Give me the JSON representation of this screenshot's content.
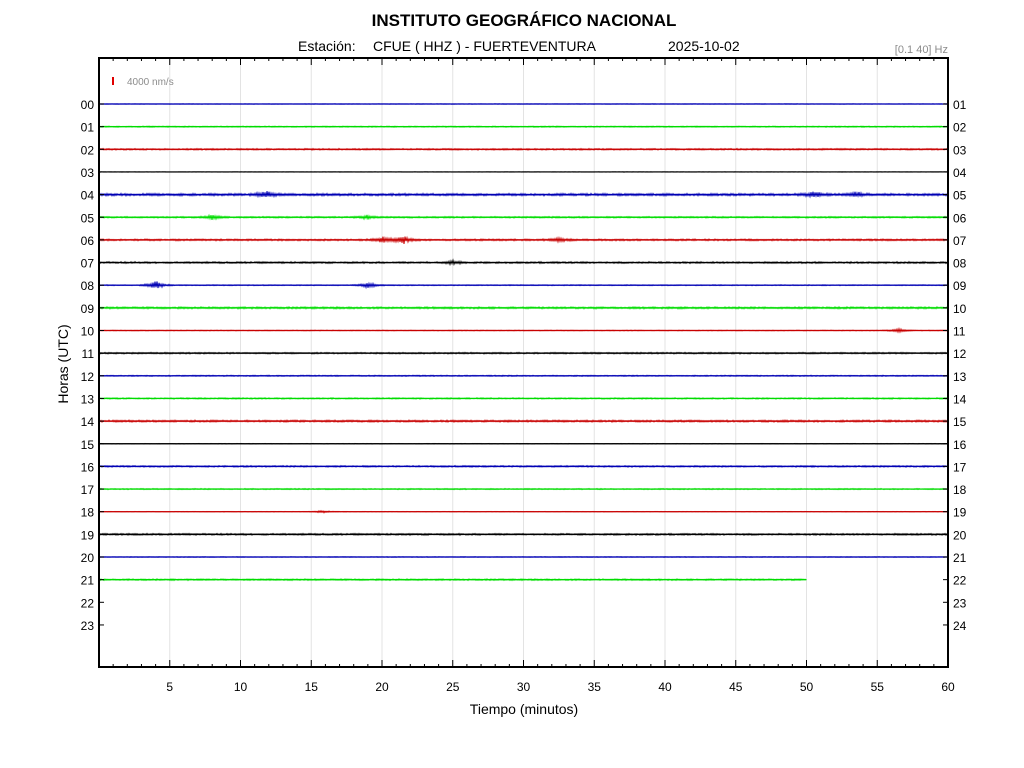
{
  "header": {
    "title": "INSTITUTO GEOGRÁFICO NACIONAL",
    "station_label": "Estación:",
    "station": "CFUE ( HHZ ) - FUERTEVENTURA",
    "date": "2025-10-02",
    "filter": "[0.1 40] Hz"
  },
  "scale": {
    "label": "4000 nm/s",
    "color": "#e00000"
  },
  "chart_data": {
    "type": "line",
    "title": "INSTITUTO GEOGRÁFICO NACIONAL",
    "xlabel": "Tiempo (minutos)",
    "ylabel": "Horas (UTC)",
    "xlim": [
      0,
      60
    ],
    "x_ticks": [
      5,
      10,
      15,
      20,
      25,
      30,
      35,
      40,
      45,
      50,
      55,
      60
    ],
    "left_hour_labels": [
      "00",
      "01",
      "02",
      "03",
      "04",
      "05",
      "06",
      "07",
      "08",
      "09",
      "10",
      "11",
      "12",
      "13",
      "14",
      "15",
      "16",
      "17",
      "18",
      "19",
      "20",
      "21",
      "22",
      "23"
    ],
    "right_hour_labels": [
      "01",
      "02",
      "03",
      "04",
      "05",
      "06",
      "07",
      "08",
      "09",
      "10",
      "11",
      "12",
      "13",
      "14",
      "15",
      "16",
      "17",
      "18",
      "19",
      "20",
      "21",
      "22",
      "23",
      "24"
    ],
    "grid": true,
    "trace_colors": [
      "#0000b4",
      "#00dc00",
      "#c80000",
      "#000000"
    ],
    "traces": [
      {
        "hour": "00",
        "end_minute": 60,
        "noise": 0.3,
        "bursts": []
      },
      {
        "hour": "01",
        "end_minute": 60,
        "noise": 0.6,
        "bursts": []
      },
      {
        "hour": "02",
        "end_minute": 60,
        "noise": 0.8,
        "bursts": []
      },
      {
        "hour": "03",
        "end_minute": 60,
        "noise": 0.3,
        "bursts": []
      },
      {
        "hour": "04",
        "end_minute": 60,
        "noise": 1.2,
        "bursts": [
          {
            "at": 11.8,
            "amp": 3.5
          },
          {
            "at": 50.5,
            "amp": 3.0
          },
          {
            "at": 53.5,
            "amp": 2.5
          }
        ]
      },
      {
        "hour": "05",
        "end_minute": 60,
        "noise": 0.8,
        "bursts": [
          {
            "at": 8.0,
            "amp": 2.5
          },
          {
            "at": 19.0,
            "amp": 2.0
          }
        ]
      },
      {
        "hour": "06",
        "end_minute": 60,
        "noise": 0.9,
        "bursts": [
          {
            "at": 20.0,
            "amp": 3.5
          },
          {
            "at": 21.5,
            "amp": 4.0
          },
          {
            "at": 32.5,
            "amp": 2.0
          }
        ]
      },
      {
        "hour": "07",
        "end_minute": 60,
        "noise": 0.9,
        "bursts": [
          {
            "at": 25.0,
            "amp": 2.0
          }
        ]
      },
      {
        "hour": "08",
        "end_minute": 60,
        "noise": 0.5,
        "bursts": [
          {
            "at": 4.0,
            "amp": 5.0
          },
          {
            "at": 19.0,
            "amp": 3.0
          }
        ]
      },
      {
        "hour": "09",
        "end_minute": 60,
        "noise": 1.0,
        "bursts": []
      },
      {
        "hour": "10",
        "end_minute": 60,
        "noise": 0.4,
        "bursts": [
          {
            "at": 56.5,
            "amp": 2.0
          }
        ]
      },
      {
        "hour": "11",
        "end_minute": 60,
        "noise": 0.8,
        "bursts": []
      },
      {
        "hour": "12",
        "end_minute": 60,
        "noise": 0.6,
        "bursts": []
      },
      {
        "hour": "13",
        "end_minute": 60,
        "noise": 0.7,
        "bursts": []
      },
      {
        "hour": "14",
        "end_minute": 60,
        "noise": 1.0,
        "bursts": []
      },
      {
        "hour": "15",
        "end_minute": 60,
        "noise": 0.3,
        "bursts": []
      },
      {
        "hour": "16",
        "end_minute": 60,
        "noise": 0.8,
        "bursts": []
      },
      {
        "hour": "17",
        "end_minute": 60,
        "noise": 0.6,
        "bursts": []
      },
      {
        "hour": "18",
        "end_minute": 60,
        "noise": 0.3,
        "bursts": [
          {
            "at": 15.8,
            "amp": 1.5
          }
        ]
      },
      {
        "hour": "19",
        "end_minute": 60,
        "noise": 0.9,
        "bursts": []
      },
      {
        "hour": "20",
        "end_minute": 60,
        "noise": 0.4,
        "bursts": []
      },
      {
        "hour": "21",
        "end_minute": 50,
        "noise": 0.8,
        "bursts": []
      }
    ]
  }
}
